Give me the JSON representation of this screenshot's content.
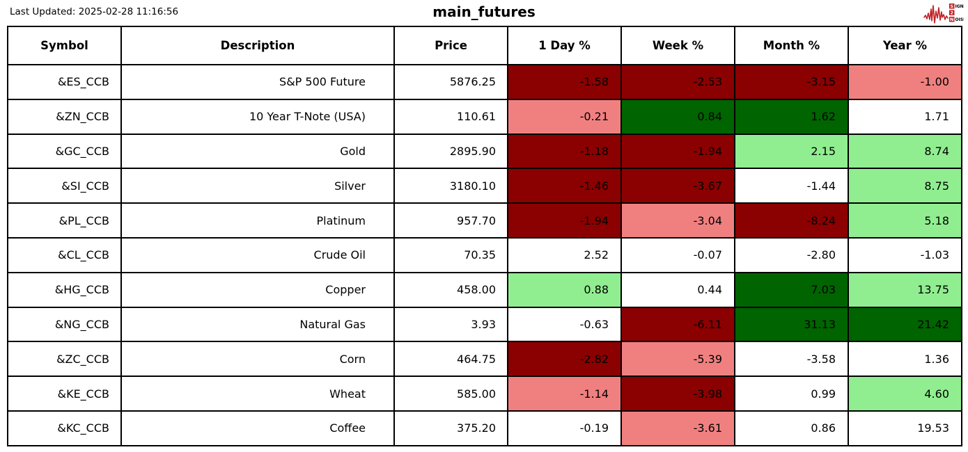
{
  "meta": {
    "last_updated_label": "Last Updated: 2025-02-28 11:16:56",
    "title": "main_futures"
  },
  "logo": {
    "brand": "signal-2-noise",
    "line1_box": "S",
    "line1_rest": "IGNAL",
    "line2_box": "2",
    "line3_box": "N",
    "line3_rest": "OISE",
    "red": "#C22026"
  },
  "colors": {
    "darkred": "#8B0000",
    "lightcoral": "#F08080",
    "darkgreen": "#006400",
    "lightgreen": "#90EE90",
    "white": "#FFFFFF"
  },
  "chart_data": {
    "type": "table",
    "title": "main_futures",
    "columns": [
      "Symbol",
      "Description",
      "Price",
      "1 Day %",
      "Week %",
      "Month %",
      "Year %"
    ],
    "rows": [
      {
        "symbol": "&ES_CCB",
        "description": "S&P 500 Future",
        "price": "5876.25",
        "pcts": [
          {
            "v": "-1.58",
            "bg": "darkred"
          },
          {
            "v": "-2.53",
            "bg": "darkred"
          },
          {
            "v": "-3.15",
            "bg": "darkred"
          },
          {
            "v": "-1.00",
            "bg": "lightcoral"
          }
        ]
      },
      {
        "symbol": "&ZN_CCB",
        "description": "10 Year T-Note (USA)",
        "price": "110.61",
        "pcts": [
          {
            "v": "-0.21",
            "bg": "lightcoral"
          },
          {
            "v": "0.84",
            "bg": "darkgreen"
          },
          {
            "v": "1.62",
            "bg": "darkgreen"
          },
          {
            "v": "1.71",
            "bg": "white"
          }
        ]
      },
      {
        "symbol": "&GC_CCB",
        "description": "Gold",
        "price": "2895.90",
        "pcts": [
          {
            "v": "-1.18",
            "bg": "darkred"
          },
          {
            "v": "-1.94",
            "bg": "darkred"
          },
          {
            "v": "2.15",
            "bg": "lightgreen"
          },
          {
            "v": "8.74",
            "bg": "lightgreen"
          }
        ]
      },
      {
        "symbol": "&SI_CCB",
        "description": "Silver",
        "price": "3180.10",
        "pcts": [
          {
            "v": "-1.46",
            "bg": "darkred"
          },
          {
            "v": "-3.67",
            "bg": "darkred"
          },
          {
            "v": "-1.44",
            "bg": "white"
          },
          {
            "v": "8.75",
            "bg": "lightgreen"
          }
        ]
      },
      {
        "symbol": "&PL_CCB",
        "description": "Platinum",
        "price": "957.70",
        "pcts": [
          {
            "v": "-1.94",
            "bg": "darkred"
          },
          {
            "v": "-3.04",
            "bg": "lightcoral"
          },
          {
            "v": "-8.24",
            "bg": "darkred"
          },
          {
            "v": "5.18",
            "bg": "lightgreen"
          }
        ]
      },
      {
        "symbol": "&CL_CCB",
        "description": "Crude Oil",
        "price": "70.35",
        "pcts": [
          {
            "v": "2.52",
            "bg": "white"
          },
          {
            "v": "-0.07",
            "bg": "white"
          },
          {
            "v": "-2.80",
            "bg": "white"
          },
          {
            "v": "-1.03",
            "bg": "white"
          }
        ]
      },
      {
        "symbol": "&HG_CCB",
        "description": "Copper",
        "price": "458.00",
        "pcts": [
          {
            "v": "0.88",
            "bg": "lightgreen"
          },
          {
            "v": "0.44",
            "bg": "white"
          },
          {
            "v": "7.03",
            "bg": "darkgreen"
          },
          {
            "v": "13.75",
            "bg": "lightgreen"
          }
        ]
      },
      {
        "symbol": "&NG_CCB",
        "description": "Natural Gas",
        "price": "3.93",
        "pcts": [
          {
            "v": "-0.63",
            "bg": "white"
          },
          {
            "v": "-6.11",
            "bg": "darkred"
          },
          {
            "v": "31.13",
            "bg": "darkgreen"
          },
          {
            "v": "21.42",
            "bg": "darkgreen"
          }
        ]
      },
      {
        "symbol": "&ZC_CCB",
        "description": "Corn",
        "price": "464.75",
        "pcts": [
          {
            "v": "-2.82",
            "bg": "darkred"
          },
          {
            "v": "-5.39",
            "bg": "lightcoral"
          },
          {
            "v": "-3.58",
            "bg": "white"
          },
          {
            "v": "1.36",
            "bg": "white"
          }
        ]
      },
      {
        "symbol": "&KE_CCB",
        "description": "Wheat",
        "price": "585.00",
        "pcts": [
          {
            "v": "-1.14",
            "bg": "lightcoral"
          },
          {
            "v": "-3.98",
            "bg": "darkred"
          },
          {
            "v": "0.99",
            "bg": "white"
          },
          {
            "v": "4.60",
            "bg": "lightgreen"
          }
        ]
      },
      {
        "symbol": "&KC_CCB",
        "description": "Coffee",
        "price": "375.20",
        "pcts": [
          {
            "v": "-0.19",
            "bg": "white"
          },
          {
            "v": "-3.61",
            "bg": "lightcoral"
          },
          {
            "v": "0.86",
            "bg": "white"
          },
          {
            "v": "19.53",
            "bg": "white"
          }
        ]
      }
    ]
  }
}
